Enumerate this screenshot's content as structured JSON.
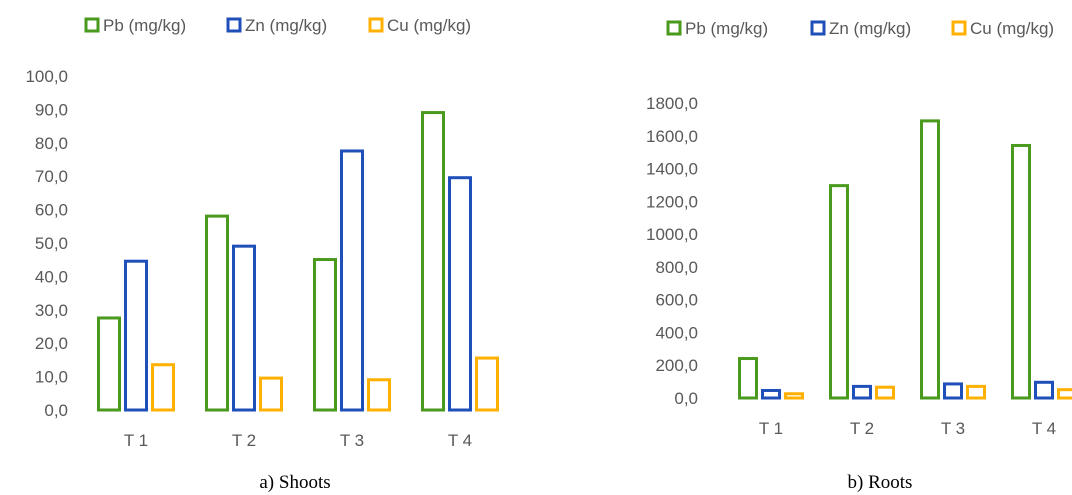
{
  "chart_data": [
    {
      "type": "bar",
      "caption": "a) Shoots",
      "categories": [
        "T 1",
        "T 2",
        "T 3",
        "T 4"
      ],
      "series": [
        {
          "name": "Pb (mg/kg)",
          "color": "#4a9a1e",
          "values": [
            28.0,
            58.5,
            45.5,
            89.5
          ]
        },
        {
          "name": "Zn (mg/kg)",
          "color": "#1f4fb8",
          "values": [
            45.0,
            49.5,
            78.0,
            70.0
          ]
        },
        {
          "name": "Cu (mg/kg)",
          "color": "#ffb000",
          "values": [
            14.0,
            10.0,
            9.5,
            16.0
          ]
        }
      ],
      "yticks": [
        "0,0",
        "10,0",
        "20,0",
        "30,0",
        "40,0",
        "50,0",
        "60,0",
        "70,0",
        "80,0",
        "90,0",
        "100,0"
      ],
      "ylim": [
        0,
        100
      ],
      "grid": false,
      "legend_position": "top"
    },
    {
      "type": "bar",
      "caption": "b) Roots",
      "categories": [
        "T 1",
        "T 2",
        "T 3",
        "T 4"
      ],
      "series": [
        {
          "name": "Pb (mg/kg)",
          "color": "#4a9a1e",
          "values": [
            250,
            1305,
            1700,
            1550
          ]
        },
        {
          "name": "Zn (mg/kg)",
          "color": "#1f4fb8",
          "values": [
            55,
            80,
            95,
            105
          ]
        },
        {
          "name": "Cu (mg/kg)",
          "color": "#ffb000",
          "values": [
            35,
            75,
            80,
            60
          ]
        }
      ],
      "yticks": [
        "0,0",
        "200,0",
        "400,0",
        "600,0",
        "800,0",
        "1000,0",
        "1200,0",
        "1400,0",
        "1600,0",
        "1800,0"
      ],
      "ylim": [
        0,
        1800
      ],
      "grid": false,
      "legend_position": "top"
    }
  ]
}
